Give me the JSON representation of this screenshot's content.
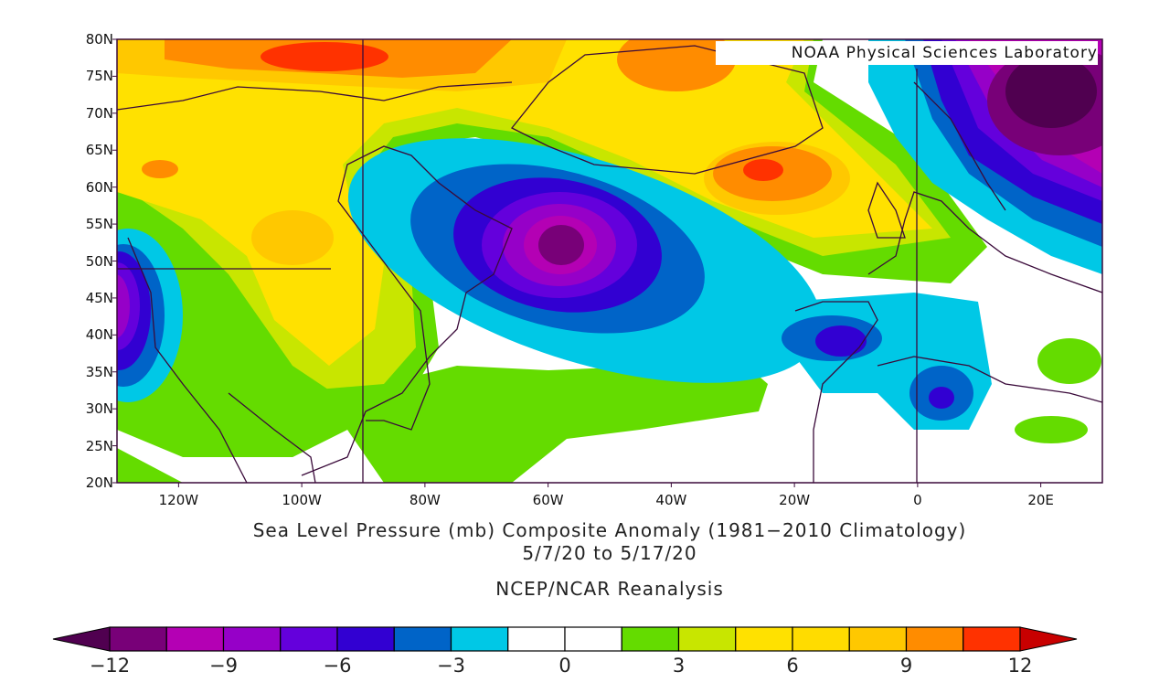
{
  "map": {
    "credit": "NOAA Physical Sciences Laboratory",
    "lat_labels": [
      "80N",
      "75N",
      "70N",
      "65N",
      "60N",
      "55N",
      "50N",
      "45N",
      "40N",
      "35N",
      "30N",
      "25N",
      "20N"
    ],
    "lon_labels": [
      {
        "text": "120W",
        "lon": -120
      },
      {
        "text": "100W",
        "lon": -100
      },
      {
        "text": "80W",
        "lon": -80
      },
      {
        "text": "60W",
        "lon": -60
      },
      {
        "text": "40W",
        "lon": -40
      },
      {
        "text": "20W",
        "lon": -20
      },
      {
        "text": "0",
        "lon": 0
      },
      {
        "text": "20E",
        "lon": 20
      }
    ],
    "lon_range": [
      -130,
      30
    ],
    "lat_range": [
      20,
      80
    ]
  },
  "titles": {
    "line1": "Sea Level Pressure (mb) Composite Anomaly (1981−2010 Climatology)",
    "line2": "5/7/20  to 5/17/20",
    "line3": "NCEP/NCAR Reanalysis"
  },
  "colorbar": {
    "labels": [
      "−12",
      "−9",
      "−6",
      "−3",
      "0",
      "3",
      "6",
      "9",
      "12"
    ],
    "min_color": "#500050",
    "max_color": "#c80000",
    "colors": [
      "#780078",
      "#b400b4",
      "#9600c8",
      "#6400dc",
      "#3200d2",
      "#0064c8",
      "#00c8e6",
      "#ffffff",
      "#ffffff",
      "#64dc00",
      "#c8e600",
      "#ffe100",
      "#ffdc00",
      "#ffc800",
      "#ff8c00",
      "#ff3200"
    ]
  }
}
